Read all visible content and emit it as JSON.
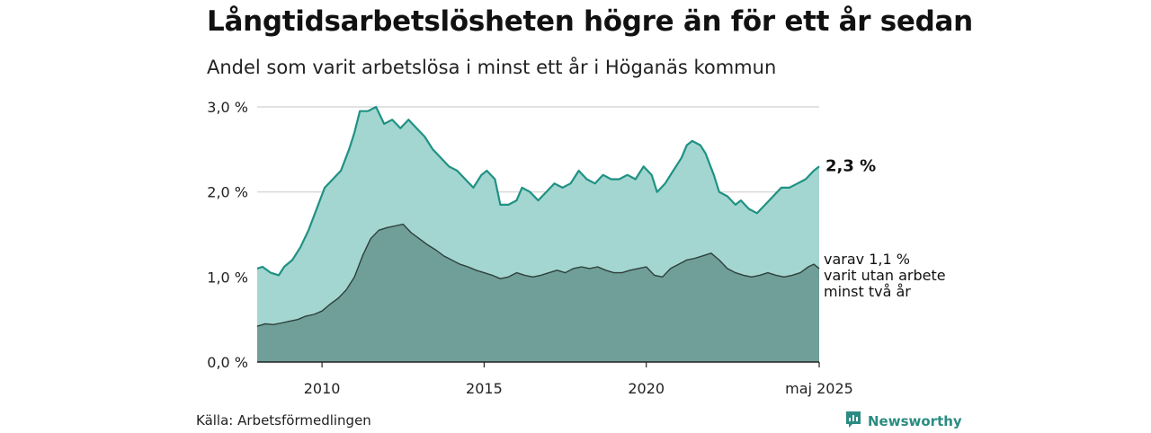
{
  "title": "Långtidsarbetslösheten högre än för ett år sedan",
  "subtitle": "Andel som varit arbetslösa i minst ett år i Höganäs kommun",
  "source": "Källa: Arbetsförmedlingen",
  "brand": {
    "name": "Newsworthy",
    "icon": "newsworthy-logo-icon"
  },
  "colors": {
    "area_upper": "#a3d6d0",
    "line_upper": "#1f9184",
    "area_lower": "#6f9f98",
    "line_lower": "#2f3f3c",
    "grid": "#d9d9d9",
    "axis": "#222222"
  },
  "chart_data": {
    "type": "area",
    "title": "Långtidsarbetslösheten högre än för ett år sedan",
    "subtitle": "Andel som varit arbetslösa i minst ett år i Höganäs kommun",
    "xlabel": "",
    "ylabel": "",
    "ylim": [
      0,
      3.0
    ],
    "yticks": [
      {
        "value": 0,
        "label": "0,0 %"
      },
      {
        "value": 1,
        "label": "1,0 %"
      },
      {
        "value": 2,
        "label": "2,0 %"
      },
      {
        "value": 3,
        "label": "3,0 %"
      }
    ],
    "xlim": [
      "2008-01",
      "2025-05"
    ],
    "xticks": [
      {
        "date": "2010-01",
        "label": "2010"
      },
      {
        "date": "2015-01",
        "label": "2015"
      },
      {
        "date": "2020-01",
        "label": "2020"
      },
      {
        "date": "2025-05",
        "label": "maj 2025"
      }
    ],
    "grid": true,
    "series": [
      {
        "key": "upper",
        "points": [
          [
            "2008-01",
            1.1
          ],
          [
            "2008-03",
            1.12
          ],
          [
            "2008-06",
            1.05
          ],
          [
            "2008-09",
            1.02
          ],
          [
            "2008-11",
            1.12
          ],
          [
            "2009-02",
            1.2
          ],
          [
            "2009-05",
            1.35
          ],
          [
            "2009-08",
            1.55
          ],
          [
            "2009-11",
            1.8
          ],
          [
            "2010-02",
            2.05
          ],
          [
            "2010-05",
            2.15
          ],
          [
            "2010-08",
            2.25
          ],
          [
            "2010-11",
            2.5
          ],
          [
            "2011-01",
            2.7
          ],
          [
            "2011-03",
            2.95
          ],
          [
            "2011-06",
            2.95
          ],
          [
            "2011-09",
            3.0
          ],
          [
            "2011-12",
            2.8
          ],
          [
            "2012-03",
            2.85
          ],
          [
            "2012-06",
            2.75
          ],
          [
            "2012-09",
            2.85
          ],
          [
            "2012-12",
            2.75
          ],
          [
            "2013-03",
            2.65
          ],
          [
            "2013-06",
            2.5
          ],
          [
            "2013-09",
            2.4
          ],
          [
            "2013-12",
            2.3
          ],
          [
            "2014-03",
            2.25
          ],
          [
            "2014-06",
            2.15
          ],
          [
            "2014-09",
            2.05
          ],
          [
            "2014-12",
            2.2
          ],
          [
            "2015-02",
            2.25
          ],
          [
            "2015-05",
            2.15
          ],
          [
            "2015-07",
            1.85
          ],
          [
            "2015-10",
            1.85
          ],
          [
            "2016-01",
            1.9
          ],
          [
            "2016-03",
            2.05
          ],
          [
            "2016-06",
            2.0
          ],
          [
            "2016-09",
            1.9
          ],
          [
            "2016-12",
            2.0
          ],
          [
            "2017-03",
            2.1
          ],
          [
            "2017-06",
            2.05
          ],
          [
            "2017-09",
            2.1
          ],
          [
            "2017-12",
            2.25
          ],
          [
            "2018-03",
            2.15
          ],
          [
            "2018-06",
            2.1
          ],
          [
            "2018-09",
            2.2
          ],
          [
            "2018-12",
            2.15
          ],
          [
            "2019-03",
            2.15
          ],
          [
            "2019-06",
            2.2
          ],
          [
            "2019-09",
            2.15
          ],
          [
            "2019-12",
            2.3
          ],
          [
            "2020-03",
            2.2
          ],
          [
            "2020-05",
            2.0
          ],
          [
            "2020-08",
            2.1
          ],
          [
            "2020-11",
            2.25
          ],
          [
            "2021-02",
            2.4
          ],
          [
            "2021-04",
            2.55
          ],
          [
            "2021-06",
            2.6
          ],
          [
            "2021-09",
            2.55
          ],
          [
            "2021-11",
            2.45
          ],
          [
            "2022-02",
            2.2
          ],
          [
            "2022-04",
            2.0
          ],
          [
            "2022-07",
            1.95
          ],
          [
            "2022-10",
            1.85
          ],
          [
            "2022-12",
            1.9
          ],
          [
            "2023-03",
            1.8
          ],
          [
            "2023-06",
            1.75
          ],
          [
            "2023-09",
            1.85
          ],
          [
            "2023-12",
            1.95
          ],
          [
            "2024-03",
            2.05
          ],
          [
            "2024-06",
            2.05
          ],
          [
            "2024-09",
            2.1
          ],
          [
            "2024-12",
            2.15
          ],
          [
            "2025-03",
            2.25
          ],
          [
            "2025-05",
            2.3
          ]
        ]
      },
      {
        "key": "lower",
        "points": [
          [
            "2008-01",
            0.42
          ],
          [
            "2008-04",
            0.45
          ],
          [
            "2008-07",
            0.44
          ],
          [
            "2008-10",
            0.46
          ],
          [
            "2009-01",
            0.48
          ],
          [
            "2009-04",
            0.5
          ],
          [
            "2009-07",
            0.54
          ],
          [
            "2009-10",
            0.56
          ],
          [
            "2010-01",
            0.6
          ],
          [
            "2010-04",
            0.68
          ],
          [
            "2010-07",
            0.75
          ],
          [
            "2010-10",
            0.85
          ],
          [
            "2011-01",
            1.0
          ],
          [
            "2011-04",
            1.25
          ],
          [
            "2011-07",
            1.45
          ],
          [
            "2011-10",
            1.55
          ],
          [
            "2012-01",
            1.58
          ],
          [
            "2012-04",
            1.6
          ],
          [
            "2012-07",
            1.62
          ],
          [
            "2012-10",
            1.52
          ],
          [
            "2013-01",
            1.45
          ],
          [
            "2013-04",
            1.38
          ],
          [
            "2013-07",
            1.32
          ],
          [
            "2013-10",
            1.25
          ],
          [
            "2014-01",
            1.2
          ],
          [
            "2014-04",
            1.15
          ],
          [
            "2014-07",
            1.12
          ],
          [
            "2014-10",
            1.08
          ],
          [
            "2015-01",
            1.05
          ],
          [
            "2015-04",
            1.02
          ],
          [
            "2015-07",
            0.98
          ],
          [
            "2015-10",
            1.0
          ],
          [
            "2016-01",
            1.05
          ],
          [
            "2016-04",
            1.02
          ],
          [
            "2016-07",
            1.0
          ],
          [
            "2016-10",
            1.02
          ],
          [
            "2017-01",
            1.05
          ],
          [
            "2017-04",
            1.08
          ],
          [
            "2017-07",
            1.05
          ],
          [
            "2017-10",
            1.1
          ],
          [
            "2018-01",
            1.12
          ],
          [
            "2018-04",
            1.1
          ],
          [
            "2018-07",
            1.12
          ],
          [
            "2018-10",
            1.08
          ],
          [
            "2019-01",
            1.05
          ],
          [
            "2019-04",
            1.05
          ],
          [
            "2019-07",
            1.08
          ],
          [
            "2019-10",
            1.1
          ],
          [
            "2020-01",
            1.12
          ],
          [
            "2020-04",
            1.02
          ],
          [
            "2020-07",
            1.0
          ],
          [
            "2020-10",
            1.1
          ],
          [
            "2021-01",
            1.15
          ],
          [
            "2021-04",
            1.2
          ],
          [
            "2021-07",
            1.22
          ],
          [
            "2021-10",
            1.25
          ],
          [
            "2022-01",
            1.28
          ],
          [
            "2022-04",
            1.2
          ],
          [
            "2022-07",
            1.1
          ],
          [
            "2022-10",
            1.05
          ],
          [
            "2023-01",
            1.02
          ],
          [
            "2023-04",
            1.0
          ],
          [
            "2023-07",
            1.02
          ],
          [
            "2023-10",
            1.05
          ],
          [
            "2024-01",
            1.02
          ],
          [
            "2024-04",
            1.0
          ],
          [
            "2024-07",
            1.02
          ],
          [
            "2024-10",
            1.05
          ],
          [
            "2025-01",
            1.12
          ],
          [
            "2025-03",
            1.15
          ],
          [
            "2025-05",
            1.1
          ]
        ]
      }
    ],
    "annotations": {
      "upper_end": "2,3 %",
      "lower_end": [
        "varav 1,1 %",
        "varit utan arbete",
        "minst två år"
      ]
    }
  }
}
